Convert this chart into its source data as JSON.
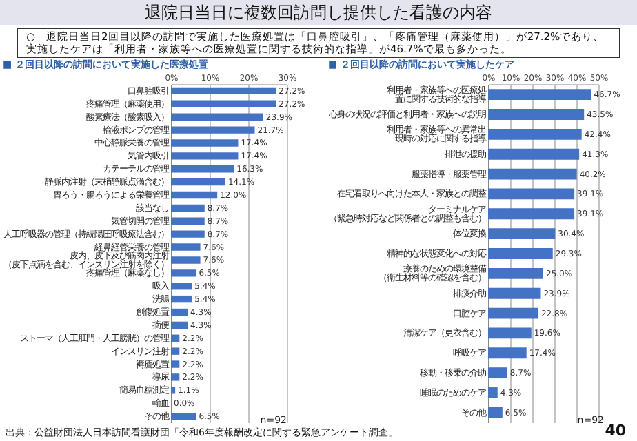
{
  "chart_data": [
    {
      "type": "other",
      "title": "退院日当日に複数回訪問し提供した看護の内容",
      "annotations": [
        "○　退院日当日2回目以降の訪問で実施した医療処置は「口鼻腔吸引」、「疼痛管理（麻薬使用）」が27.2%であり、実施したケアは「利用者・家族等への医療処置に関する技術的な指導」が46.7%で最も多かった。",
        "出典：公益財団法人日本訪問看護財団「令和6年度報酬改定に関する緊急アンケート調査」",
        "40"
      ]
    },
    {
      "type": "bar",
      "orientation": "horizontal",
      "title": "■ ２回目以降の訪問において実施した医療処置",
      "color": "#4472c4",
      "grid": "x",
      "categories": [
        "口鼻腔吸引",
        "疼痛管理（麻薬使用）",
        "酸素療法（酸素吸入）",
        "輸液ポンプの管理",
        "中心静脈栄養の管理",
        "気管内吸引",
        "カテーテルの管理",
        "静脈内注射（末梢静脈点滴含む）",
        "胃ろう・腸ろうによる栄養管理",
        "該当なし",
        "気管切開の管理",
        "人工呼吸器の管理（持続陽圧呼吸療法含む）",
        "経鼻経管栄養の管理",
        "皮内、皮下及び筋肉内注射（皮下点滴を含む、インスリン注射を除く）",
        "疼痛管理（麻薬なし）",
        "吸入",
        "洗腸",
        "創傷処置",
        "摘便",
        "ストーマ（人工肛門・人工膀胱）の管理",
        "インスリン注射",
        "褥瘡処置",
        "導尿",
        "簡易血糖測定",
        "輸血",
        "その他"
      ],
      "values": [
        27.2,
        27.2,
        23.9,
        21.7,
        17.4,
        17.4,
        16.3,
        14.1,
        12.0,
        8.7,
        8.7,
        8.7,
        7.6,
        7.6,
        6.5,
        5.4,
        5.4,
        4.3,
        4.3,
        2.2,
        2.2,
        2.2,
        2.2,
        1.1,
        0.0,
        6.5
      ],
      "value_labels": [
        "27.2%",
        "27.2%",
        "23.9%",
        "21.7%",
        "17.4%",
        "17.4%",
        "16.3%",
        "14.1%",
        "12.0%",
        "8.7%",
        "8.7%",
        "8.7%",
        "7.6%",
        "7.6%",
        "6.5%",
        "5.4%",
        "5.4%",
        "4.3%",
        "4.3%",
        "2.2%",
        "2.2%",
        "2.2%",
        "2.2%",
        "1.1%",
        "0.0%",
        "6.5%"
      ],
      "xlim": [
        0,
        30
      ],
      "xticks": [
        {
          "value": 0,
          "label": "0%"
        },
        {
          "value": 10,
          "label": "10%"
        },
        {
          "value": 20,
          "label": "20%"
        },
        {
          "value": 30,
          "label": "30%"
        }
      ],
      "annotations": [
        "n=92"
      ]
    },
    {
      "type": "bar",
      "orientation": "horizontal",
      "title": "■ ２回目以降の訪問において実施したケア",
      "color": "#4472c4",
      "grid": "x",
      "categories": [
        "利用者・家族等への医療処置に関する技術的な指導",
        "心身の状況の評価と利用者・家族への説明",
        "利用者・家族等への異常出現時の対応に関する指導",
        "排泄の援助",
        "服薬指導・服薬管理",
        "在宅看取りへ向けた本人・家族との調整",
        "ターミナルケア（緊急時対応など関係者との調整も含む）",
        "体位変換",
        "精神的な状態変化への対応",
        "療養のための環境整備（衛生材料等の確認を含む）",
        "排痰介助",
        "口腔ケア",
        "清潔ケア（更衣含む）",
        "呼吸ケア",
        "移動・移乗の介助",
        "睡眠のためのケア",
        "その他"
      ],
      "values": [
        46.7,
        43.5,
        42.4,
        41.3,
        40.2,
        39.1,
        39.1,
        30.4,
        29.3,
        25.0,
        23.9,
        22.8,
        19.6,
        17.4,
        8.7,
        4.3,
        6.5
      ],
      "value_labels": [
        "46.7%",
        "43.5%",
        "42.4%",
        "41.3%",
        "40.2%",
        "39.1%",
        "39.1%",
        "30.4%",
        "29.3%",
        "25.0%",
        "23.9%",
        "22.8%",
        "19.6%",
        "17.4%",
        "8.7%",
        "4.3%",
        "6.5%"
      ],
      "xlim": [
        0,
        50
      ],
      "xticks": [
        {
          "value": 0,
          "label": "0%"
        },
        {
          "value": 10,
          "label": "10%"
        },
        {
          "value": 20,
          "label": "20%"
        },
        {
          "value": 30,
          "label": "30%"
        },
        {
          "value": 40,
          "label": "40%"
        },
        {
          "value": 50,
          "label": "50%"
        }
      ],
      "annotations": [
        "n=92"
      ]
    }
  ]
}
